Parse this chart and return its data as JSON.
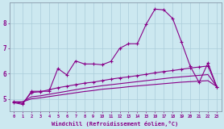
{
  "xlabel": "Windchill (Refroidissement éolien,°C)",
  "x": [
    0,
    1,
    2,
    3,
    4,
    5,
    6,
    7,
    8,
    9,
    10,
    11,
    12,
    13,
    14,
    15,
    16,
    17,
    18,
    19,
    20,
    21,
    22,
    23
  ],
  "line1": [
    4.85,
    4.78,
    5.3,
    5.3,
    5.3,
    6.2,
    5.95,
    6.5,
    6.38,
    6.38,
    6.35,
    6.48,
    7.0,
    7.18,
    7.18,
    7.95,
    8.55,
    8.52,
    8.18,
    7.25,
    6.28,
    5.65,
    6.42,
    5.48
  ],
  "line2": [
    4.88,
    4.82,
    5.25,
    5.28,
    5.36,
    5.44,
    5.5,
    5.56,
    5.62,
    5.66,
    5.72,
    5.78,
    5.83,
    5.87,
    5.92,
    5.97,
    6.03,
    6.08,
    6.12,
    6.17,
    6.22,
    6.26,
    6.3,
    5.48
  ],
  "line3": [
    4.88,
    4.88,
    5.08,
    5.12,
    5.18,
    5.24,
    5.3,
    5.36,
    5.42,
    5.47,
    5.52,
    5.56,
    5.6,
    5.64,
    5.68,
    5.72,
    5.76,
    5.8,
    5.84,
    5.87,
    5.9,
    5.93,
    5.96,
    5.48
  ],
  "line4": [
    4.88,
    4.88,
    5.0,
    5.04,
    5.09,
    5.14,
    5.19,
    5.24,
    5.29,
    5.33,
    5.38,
    5.41,
    5.44,
    5.48,
    5.51,
    5.54,
    5.57,
    5.6,
    5.63,
    5.66,
    5.68,
    5.7,
    5.72,
    5.48
  ],
  "line_color": "#880088",
  "bg_color": "#cce8f0",
  "grid_color": "#aaccda",
  "ylim": [
    4.5,
    8.8
  ],
  "xlim": [
    -0.5,
    23.5
  ]
}
